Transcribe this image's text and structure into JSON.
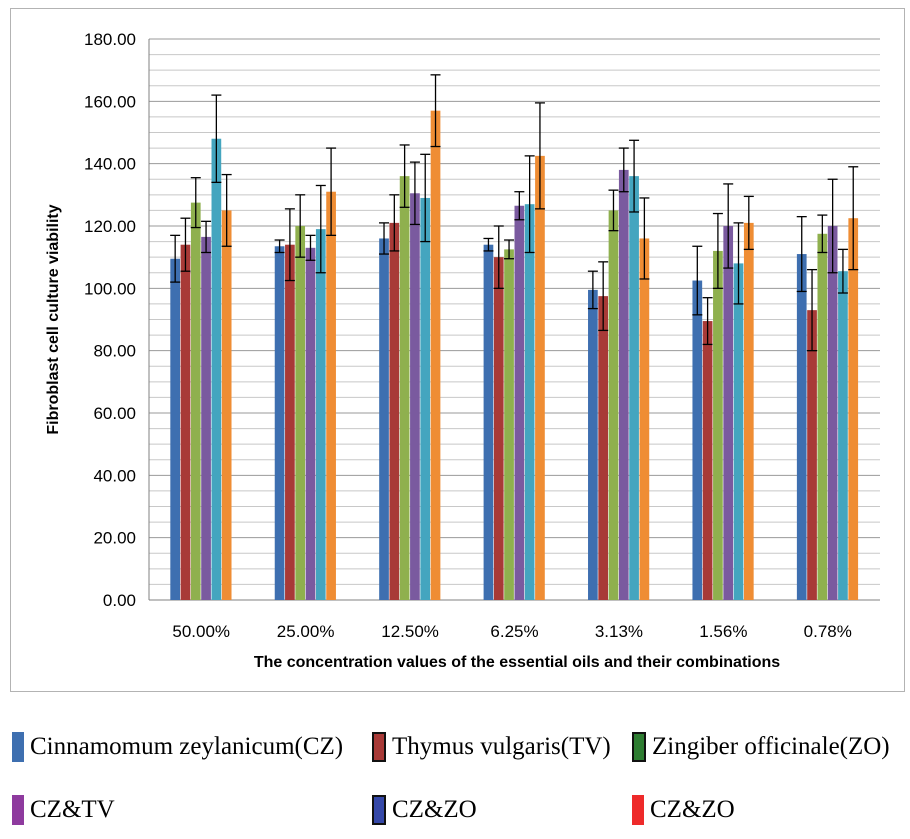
{
  "chart_data": {
    "type": "bar",
    "xlabel": "The concentration values of the essential oils and their combinations",
    "ylabel": "Fibroblast cell culture viability",
    "ylim": [
      0,
      180
    ],
    "y_ticks": [
      "0.00",
      "20.00",
      "40.00",
      "60.00",
      "80.00",
      "100.00",
      "120.00",
      "140.00",
      "160.00",
      "180.00"
    ],
    "grid": true,
    "error_bars": true,
    "legend_position": "bottom",
    "categories": [
      "50.00%",
      "25.00%",
      "12.50%",
      "6.25%",
      "3.13%",
      "1.56%",
      "0.78%"
    ],
    "series": [
      {
        "color": "#3e6fb0",
        "values": [
          109.5,
          113.5,
          116.0,
          114.0,
          99.5,
          102.5,
          111.0
        ],
        "errors": [
          7.5,
          2.0,
          5.0,
          2.0,
          6.0,
          11.0,
          12.0
        ]
      },
      {
        "color": "#a83a37",
        "values": [
          114.0,
          114.0,
          121.0,
          110.0,
          97.5,
          89.5,
          93.0
        ],
        "errors": [
          8.5,
          11.5,
          9.0,
          10.0,
          11.0,
          7.5,
          13.0
        ]
      },
      {
        "color": "#8fb04e",
        "values": [
          127.5,
          120.0,
          136.0,
          112.5,
          125.0,
          112.0,
          117.5
        ],
        "errors": [
          8.0,
          10.0,
          10.0,
          3.0,
          6.5,
          12.0,
          6.0
        ]
      },
      {
        "color": "#7a5a9f",
        "values": [
          116.5,
          113.0,
          130.5,
          126.5,
          138.0,
          120.0,
          120.0
        ],
        "errors": [
          5.0,
          4.0,
          10.0,
          4.5,
          7.0,
          13.5,
          15.0
        ]
      },
      {
        "color": "#44a5bf",
        "values": [
          148.0,
          119.0,
          129.0,
          127.0,
          136.0,
          108.0,
          105.5
        ],
        "errors": [
          14.0,
          14.0,
          14.0,
          15.5,
          11.5,
          13.0,
          7.0
        ]
      },
      {
        "color": "#ef8d34",
        "values": [
          125.0,
          131.0,
          157.0,
          142.5,
          116.0,
          121.0,
          122.5
        ],
        "errors": [
          11.5,
          14.0,
          11.5,
          17.0,
          13.0,
          8.5,
          16.5
        ]
      }
    ]
  },
  "legend": {
    "items": [
      {
        "label": "Cinnamomum zeylanicum(CZ)",
        "color": "#3e6fb0",
        "box": false
      },
      {
        "label": "Thymus vulgaris(TV)",
        "color": "#a83a37",
        "box": true
      },
      {
        "label": "Zingiber officinale(ZO)",
        "color": "#2e7d32",
        "box": true
      },
      {
        "label": "CZ&TV",
        "color": "#8e3a9e",
        "box": false
      },
      {
        "label": "CZ&ZO",
        "color": "#3548a8",
        "box": true
      },
      {
        "label": "CZ&ZO",
        "color": "#ee2a2a",
        "box": false
      }
    ]
  }
}
